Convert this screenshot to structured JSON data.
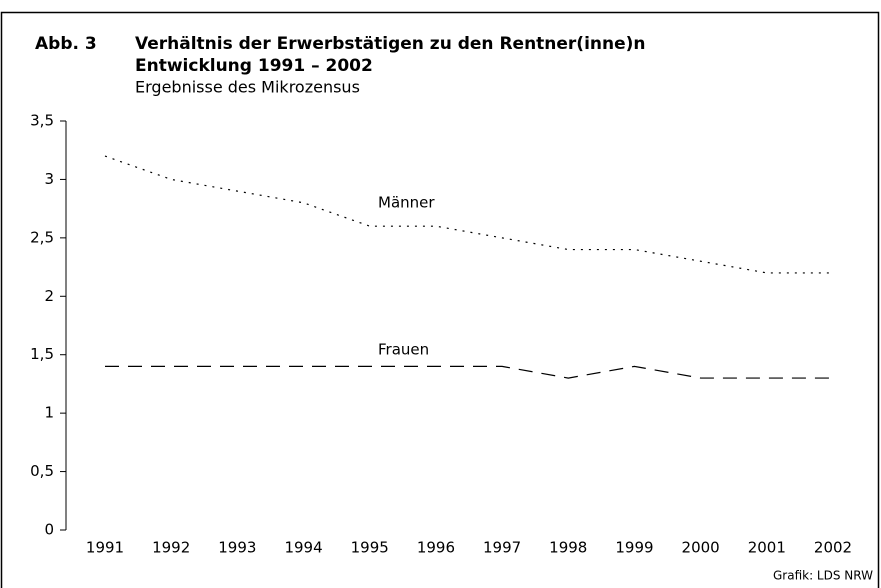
{
  "chart_data": {
    "type": "line",
    "figure_label": "Abb. 3",
    "title": "Verhältnis der Erwerbstätigen zu den Rentner(inne)n",
    "subtitle": "Entwicklung 1991 – 2002",
    "note": "Ergebnisse des Mikrozensus",
    "source": "Grafik: LDS NRW",
    "categories": [
      "1991",
      "1992",
      "1993",
      "1994",
      "1995",
      "1996",
      "1997",
      "1998",
      "1999",
      "2000",
      "2001",
      "2002"
    ],
    "series": [
      {
        "name": "Männer",
        "color": "#000000",
        "line_style": "dotted",
        "values": [
          3.2,
          3.0,
          2.9,
          2.8,
          2.6,
          2.6,
          2.5,
          2.4,
          2.4,
          2.3,
          2.2,
          2.2
        ]
      },
      {
        "name": "Frauen",
        "color": "#000000",
        "line_style": "dashed",
        "values": [
          1.4,
          1.4,
          1.4,
          1.4,
          1.4,
          1.4,
          1.4,
          1.3,
          1.4,
          1.3,
          1.3,
          1.3
        ]
      }
    ],
    "ylim": [
      0,
      3.5
    ],
    "yticks": [
      0,
      {
        "value": 0.5,
        "label": "0,5"
      },
      1,
      {
        "value": 1.5,
        "label": "1,5"
      },
      2,
      {
        "value": 2.5,
        "label": "2,5"
      },
      3,
      {
        "value": 3.5,
        "label": "3,5"
      }
    ],
    "grid": false
  }
}
